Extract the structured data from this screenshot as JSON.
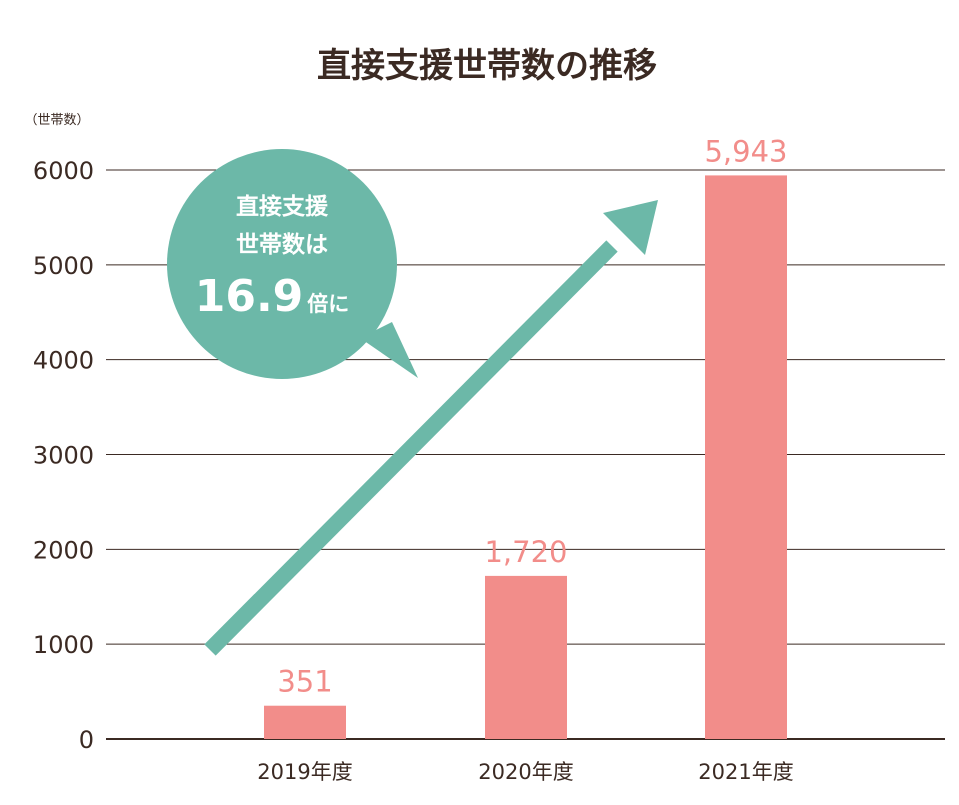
{
  "chart_data": {
    "type": "bar",
    "title": "直接支援世帯数の推移",
    "ylabel": "（世帯数）",
    "xlabel": "",
    "categories": [
      "2019年度",
      "2020年度",
      "2021年度"
    ],
    "values": [
      351,
      1720,
      5943
    ],
    "value_labels": [
      "351",
      "1,720",
      "5,943"
    ],
    "yticks": [
      "0",
      "1000",
      "2000",
      "3000",
      "4000",
      "5000",
      "6000"
    ],
    "ylim": [
      0,
      6000
    ],
    "grid": true,
    "annotation": {
      "line1": "直接支援",
      "line2": "世帯数は",
      "number": "16.9",
      "suffix": "倍に"
    },
    "colors": {
      "bar": "#f28d8a",
      "label": "#f28d8a",
      "arrow": "#6cb8a8",
      "bubble": "#6cb8a8",
      "grid": "#3b2a23",
      "text": "#3b2a23"
    }
  }
}
